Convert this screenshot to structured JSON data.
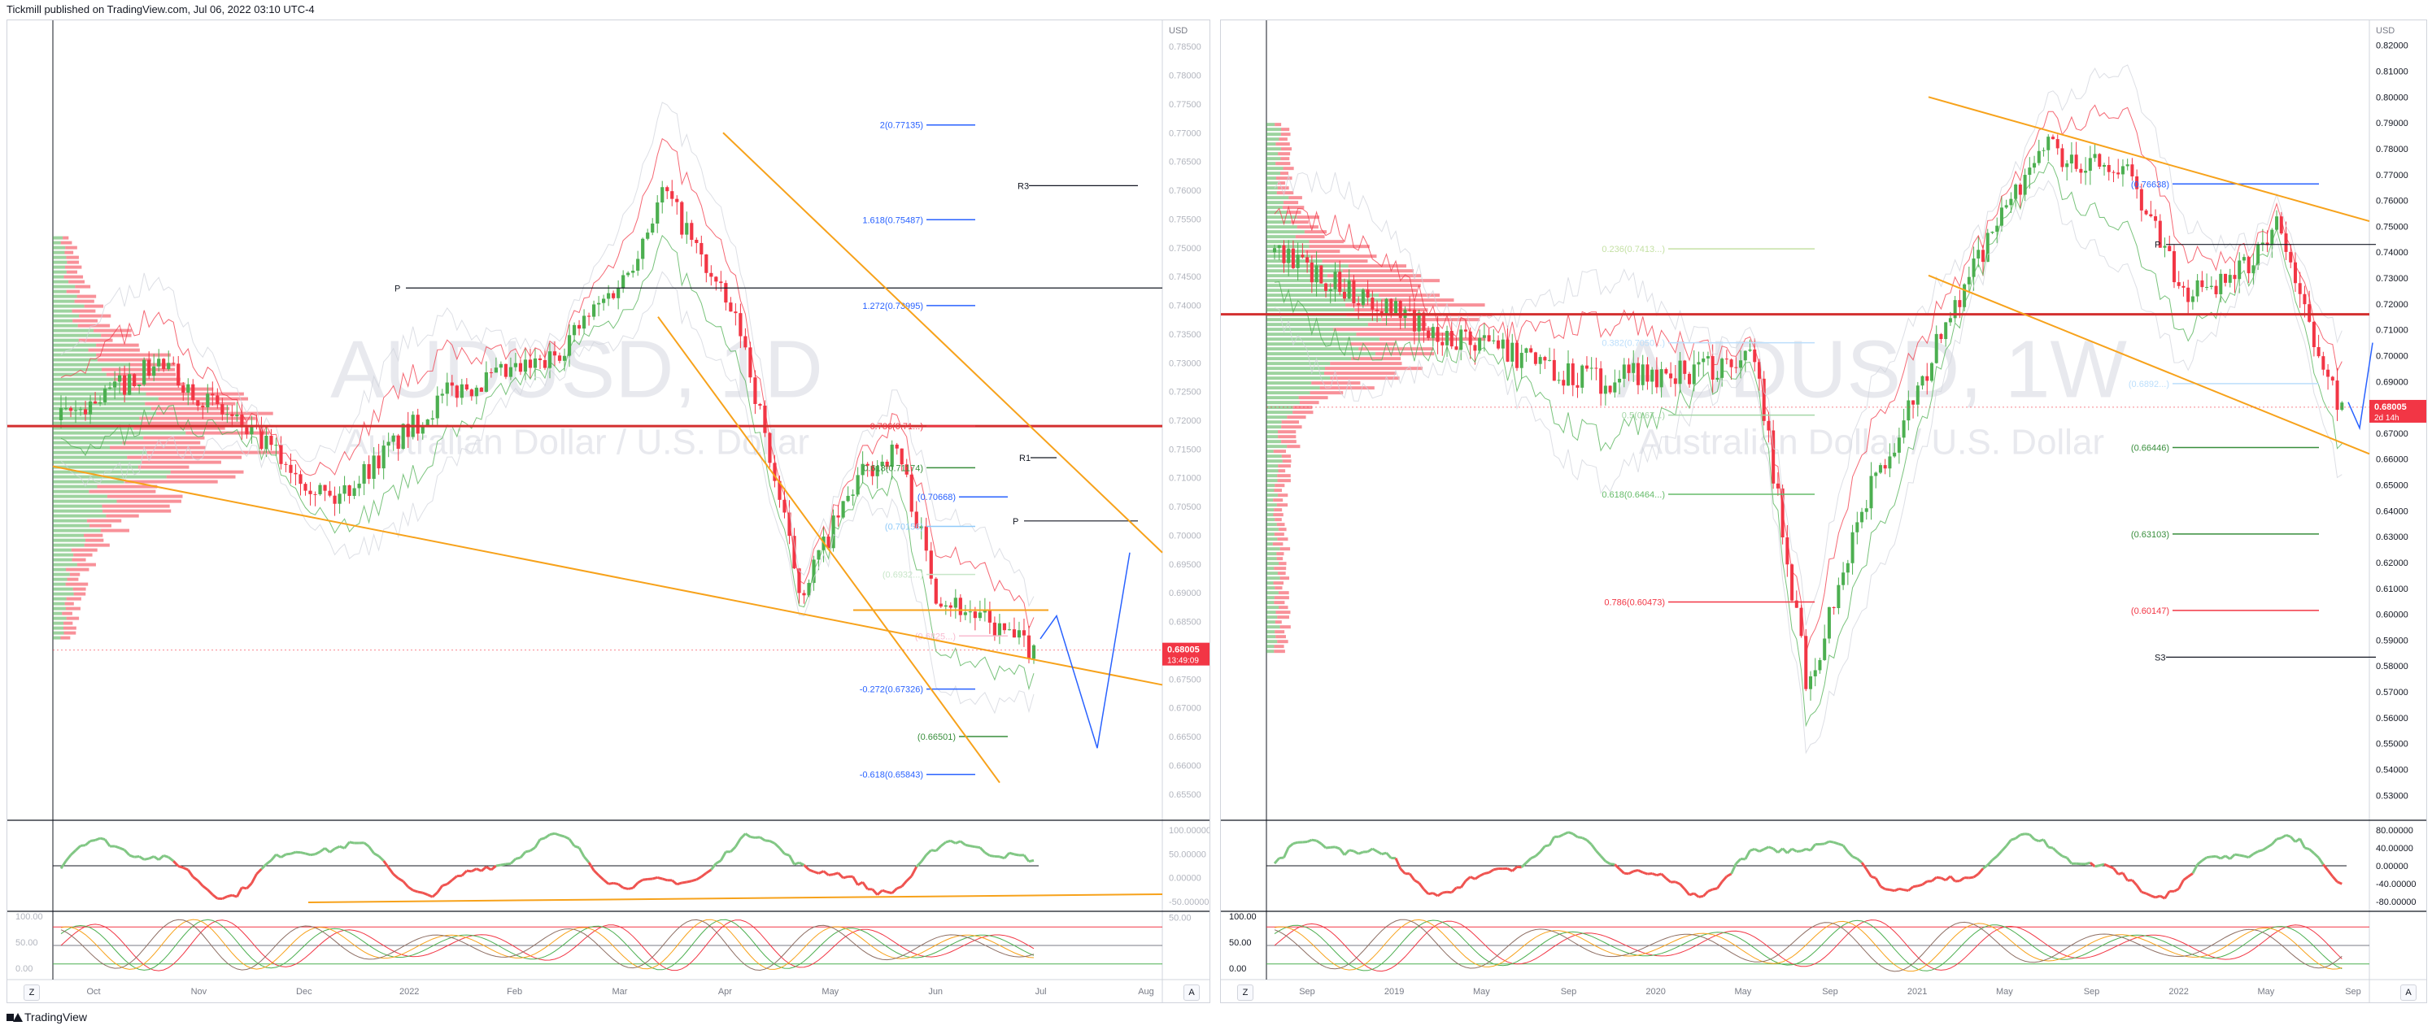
{
  "header": {
    "publisher": "Tickmill published on TradingView.com, Jul 06, 2022 03:10 UTC-4"
  },
  "footer": {
    "brand": "TradingView"
  },
  "colors": {
    "up": "#4caf50",
    "down": "#f23645",
    "orange": "#f7a21b",
    "blue": "#2962ff",
    "green": "#388e3c",
    "black": "#131722",
    "red_level": "#e53935"
  },
  "icons": {
    "logo": "tradingview-logo-icon",
    "corner": "timezone-z-icon",
    "auto": "auto-scale-icon"
  },
  "corner_labels": {
    "z": "Z",
    "a": "A"
  },
  "chart_data": [
    {
      "type": "candlestick",
      "symbol": "AUDUSD, 1D",
      "watermark": "AUDUSD, 1D",
      "watermark_sub": "Australian Dollar / U.S. Dollar",
      "currency": "USD",
      "ylim": [
        0.653,
        0.787
      ],
      "price_ticks": [
        "0.78500",
        "0.78000",
        "0.77500",
        "0.77000",
        "0.76500",
        "0.76000",
        "0.75500",
        "0.75000",
        "0.74500",
        "0.74000",
        "0.73500",
        "0.73000",
        "0.72500",
        "0.72000",
        "0.71500",
        "0.71000",
        "0.70500",
        "0.70000",
        "0.69500",
        "0.69000",
        "0.68500",
        "0.68000",
        "0.67500",
        "0.67000",
        "0.66500",
        "0.66000",
        "0.65500"
      ],
      "time_labels": [
        "Oct",
        "Nov",
        "Dec",
        "2022",
        "Feb",
        "Mar",
        "Apr",
        "May",
        "Jun",
        "Jul",
        "Aug"
      ],
      "last_price": "0.68005",
      "countdown": "13:49:09",
      "levels": [
        {
          "label": "2(0.77135)",
          "value": 0.77135,
          "color": "#2962ff"
        },
        {
          "label": "1.618(0.75487)",
          "value": 0.75487,
          "color": "#2962ff"
        },
        {
          "label": "1.272(0.73995)",
          "value": 0.73995,
          "color": "#2962ff"
        },
        {
          "label": "0.786(0.71...)",
          "value": 0.719,
          "color": "#f23645"
        },
        {
          "label": "0.618(0.71174)",
          "value": 0.71174,
          "color": "#388e3c"
        },
        {
          "label": "(0.70668)",
          "value": 0.70668,
          "color": "#2962ff"
        },
        {
          "label": "(0.70156)",
          "value": 0.70156,
          "color": "#90caf9"
        },
        {
          "label": "(0.6932...)",
          "value": 0.6932,
          "color": "#c8e6c9"
        },
        {
          "label": "(0.6825...)",
          "value": 0.6825,
          "color": "#f8bbd0"
        },
        {
          "label": "-0.272(0.67326)",
          "value": 0.67326,
          "color": "#2962ff"
        },
        {
          "label": "(0.66501)",
          "value": 0.66501,
          "color": "#388e3c"
        },
        {
          "label": "-0.618(0.65843)",
          "value": 0.65843,
          "color": "#2962ff"
        }
      ],
      "pivots": [
        {
          "label": "R3",
          "value": 0.7608
        },
        {
          "label": "P",
          "value": 0.743
        },
        {
          "label": "R1",
          "value": 0.7135
        },
        {
          "label": "P",
          "value": 0.7025
        }
      ],
      "oscillator1_ticks": [
        "100.00000",
        "50.00000",
        "0.00000",
        "-50.00000"
      ],
      "oscillator2_ticks": [
        "100.00",
        "50.00",
        "0.00"
      ],
      "oscillator2_ticks_right": [
        "50.00"
      ]
    },
    {
      "type": "candlestick",
      "symbol": "AUDUSD, 1W",
      "watermark": "AUDUSD, 1W",
      "watermark_sub": "Australian Dollar / U.S. Dollar",
      "currency": "USD",
      "ylim": [
        0.526,
        0.824
      ],
      "price_ticks": [
        "0.82000",
        "0.81000",
        "0.80000",
        "0.79000",
        "0.78000",
        "0.77000",
        "0.76000",
        "0.75000",
        "0.74000",
        "0.73000",
        "0.72000",
        "0.71000",
        "0.70000",
        "0.69000",
        "0.68000",
        "0.67000",
        "0.66000",
        "0.65000",
        "0.64000",
        "0.63000",
        "0.62000",
        "0.61000",
        "0.60000",
        "0.59000",
        "0.58000",
        "0.57000",
        "0.56000",
        "0.55000",
        "0.54000",
        "0.53000"
      ],
      "time_labels": [
        "Sep",
        "2019",
        "May",
        "Sep",
        "2020",
        "May",
        "Sep",
        "2021",
        "May",
        "Sep",
        "2022",
        "May",
        "Sep"
      ],
      "last_price": "0.68005",
      "countdown": "2d 14h",
      "levels": [
        {
          "label": "(0.76638)",
          "value": 0.76638,
          "color": "#2962ff"
        },
        {
          "label": "0.236(0.7413...)",
          "value": 0.7413,
          "color": "#c5e1a5"
        },
        {
          "label": "0.382(0.7050...)",
          "value": 0.705,
          "color": "#bbdefb"
        },
        {
          "label": "(0.6892...)",
          "value": 0.6892,
          "color": "#bbdefb"
        },
        {
          "label": "0.5(0.67...)",
          "value": 0.677,
          "color": "#a5d6a7"
        },
        {
          "label": "(0.66446)",
          "value": 0.66446,
          "color": "#388e3c"
        },
        {
          "label": "0.618(0.6464...)",
          "value": 0.6464,
          "color": "#66bb6a"
        },
        {
          "label": "(0.63103)",
          "value": 0.63103,
          "color": "#388e3c"
        },
        {
          "label": "0.786(0.60473)",
          "value": 0.60473,
          "color": "#f23645"
        },
        {
          "label": "(0.60147)",
          "value": 0.60147,
          "color": "#f23645"
        }
      ],
      "pivots": [
        {
          "label": "P",
          "value": 0.743
        },
        {
          "label": "S3",
          "value": 0.5834
        }
      ],
      "oscillator1_ticks": [
        "80.00000",
        "40.00000",
        "0.00000",
        "-40.00000",
        "-80.00000"
      ],
      "oscillator2_ticks": [
        "100.00",
        "50.00",
        "0.00"
      ]
    }
  ]
}
